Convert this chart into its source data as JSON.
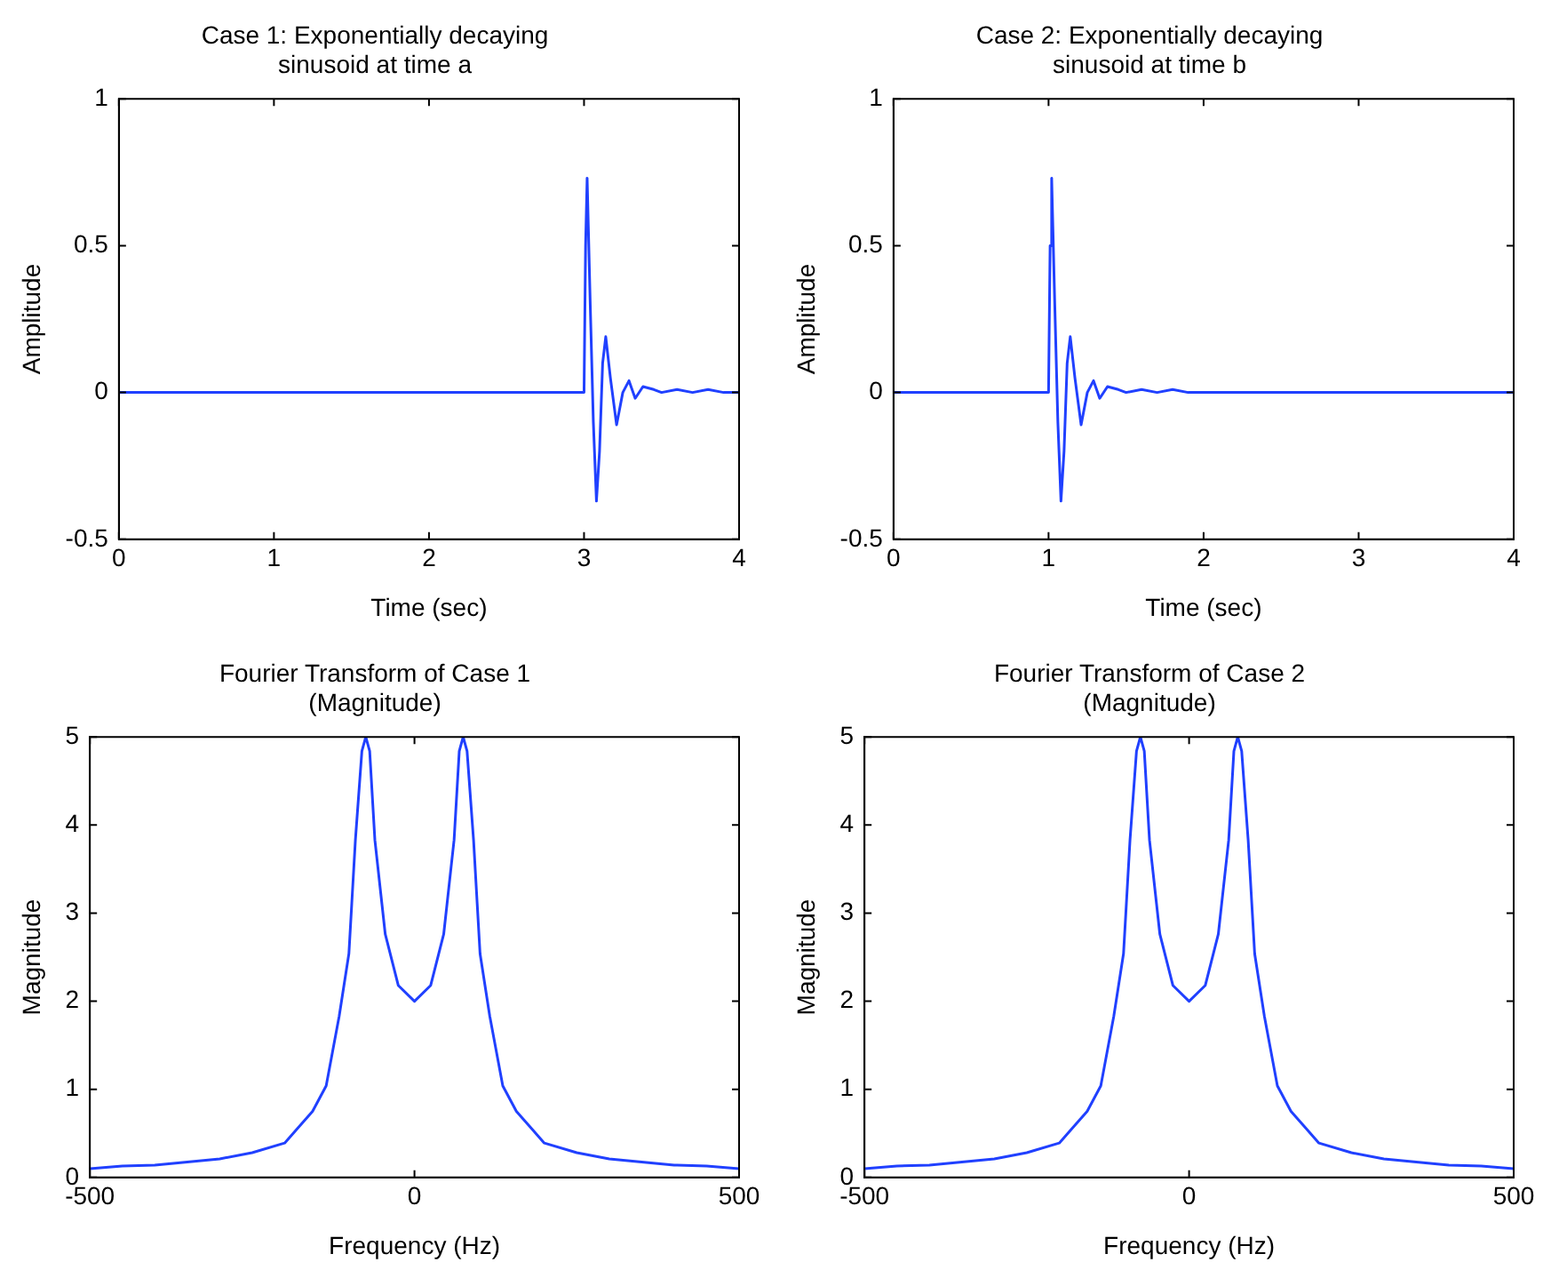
{
  "chart_data": [
    {
      "type": "line",
      "title": "Case 1: Exponentially decaying sinusoid at time a",
      "xlabel": "Time (sec)",
      "ylabel": "Amplitude",
      "xlim": [
        0,
        4
      ],
      "ylim": [
        -0.5,
        1
      ],
      "xticks": [
        0,
        1,
        2,
        3,
        4
      ],
      "yticks": [
        -0.5,
        0,
        0.5,
        1
      ],
      "marker": "none",
      "series": [
        {
          "color": "#2040ff",
          "x": [
            0,
            3.0,
            3.01,
            3.02,
            3.04,
            3.06,
            3.08,
            3.1,
            3.12,
            3.14,
            3.17,
            3.21,
            3.25,
            3.29,
            3.33,
            3.38,
            3.45,
            3.5,
            3.6,
            3.7,
            3.8,
            3.9,
            4
          ],
          "values": [
            0,
            0,
            0.5,
            0.73,
            0.3,
            -0.1,
            -0.37,
            -0.2,
            0.1,
            0.19,
            0.05,
            -0.11,
            0,
            0.04,
            -0.02,
            0.02,
            0.01,
            0,
            0.01,
            0,
            0.01,
            0,
            0
          ]
        }
      ]
    },
    {
      "type": "line",
      "title": "Case 2: Exponentially decaying sinusoid at time b",
      "xlabel": "Time (sec)",
      "ylabel": "Amplitude",
      "xlim": [
        0,
        4
      ],
      "ylim": [
        -0.5,
        1
      ],
      "xticks": [
        0,
        1,
        2,
        3,
        4
      ],
      "yticks": [
        -0.5,
        0,
        0.5,
        1
      ],
      "marker": "none",
      "series": [
        {
          "color": "#2040ff",
          "x": [
            0,
            1.0,
            1.01,
            1.02,
            1.04,
            1.06,
            1.08,
            1.1,
            1.12,
            1.14,
            1.17,
            1.21,
            1.25,
            1.29,
            1.33,
            1.38,
            1.45,
            1.5,
            1.6,
            1.7,
            1.8,
            1.9,
            2,
            4
          ],
          "values": [
            0,
            0,
            0.5,
            0.73,
            0.3,
            -0.1,
            -0.37,
            -0.2,
            0.1,
            0.19,
            0.05,
            -0.11,
            0,
            0.04,
            -0.02,
            0.02,
            0.01,
            0,
            0.01,
            0,
            0.01,
            0,
            0,
            0
          ]
        }
      ]
    },
    {
      "type": "line",
      "title": "Fourier Transform of Case 1 (Magnitude)",
      "xlabel": "Frequency (Hz)",
      "ylabel": "Magnitude",
      "xlim": [
        -500,
        500
      ],
      "ylim": [
        0,
        5
      ],
      "xticks": [
        -500,
        0,
        500
      ],
      "yticks": [
        0,
        1,
        2,
        3,
        4,
        5
      ],
      "marker": "none",
      "series": [
        {
          "color": "#2040ff",
          "x": [
            -500,
            -450,
            -400,
            -300,
            -250,
            -200,
            -157,
            -136,
            -116,
            -101,
            -91,
            -81,
            -75,
            -69,
            -61,
            -45,
            -25,
            0,
            25,
            45,
            61,
            69,
            75,
            81,
            91,
            101,
            116,
            136,
            157,
            200,
            250,
            300,
            400,
            450,
            500
          ],
          "values": [
            0.1,
            0.13,
            0.14,
            0.21,
            0.28,
            0.39,
            0.75,
            1.04,
            1.83,
            2.54,
            3.83,
            4.84,
            5,
            4.84,
            3.83,
            2.76,
            2.18,
            2.0,
            2.18,
            2.76,
            3.83,
            4.84,
            5,
            4.84,
            3.83,
            2.54,
            1.83,
            1.04,
            0.75,
            0.39,
            0.28,
            0.21,
            0.14,
            0.13,
            0.1
          ]
        }
      ]
    },
    {
      "type": "line",
      "title": "Fourier Transform of Case 2 (Magnitude)",
      "xlabel": "Frequency (Hz)",
      "ylabel": "Magnitude",
      "xlim": [
        -500,
        500
      ],
      "ylim": [
        0,
        5
      ],
      "xticks": [
        -500,
        0,
        500
      ],
      "yticks": [
        0,
        1,
        2,
        3,
        4,
        5
      ],
      "marker": "none",
      "series": [
        {
          "color": "#2040ff",
          "x": [
            -500,
            -450,
            -400,
            -300,
            -250,
            -200,
            -157,
            -136,
            -116,
            -101,
            -91,
            -81,
            -75,
            -69,
            -61,
            -45,
            -25,
            0,
            25,
            45,
            61,
            69,
            75,
            81,
            91,
            101,
            116,
            136,
            157,
            200,
            250,
            300,
            400,
            450,
            500
          ],
          "values": [
            0.1,
            0.13,
            0.14,
            0.21,
            0.28,
            0.39,
            0.75,
            1.04,
            1.83,
            2.54,
            3.83,
            4.84,
            5,
            4.84,
            3.83,
            2.76,
            2.18,
            2.0,
            2.18,
            2.76,
            3.83,
            4.84,
            5,
            4.84,
            3.83,
            2.54,
            1.83,
            1.04,
            0.75,
            0.39,
            0.28,
            0.21,
            0.14,
            0.13,
            0.1
          ]
        }
      ]
    }
  ]
}
